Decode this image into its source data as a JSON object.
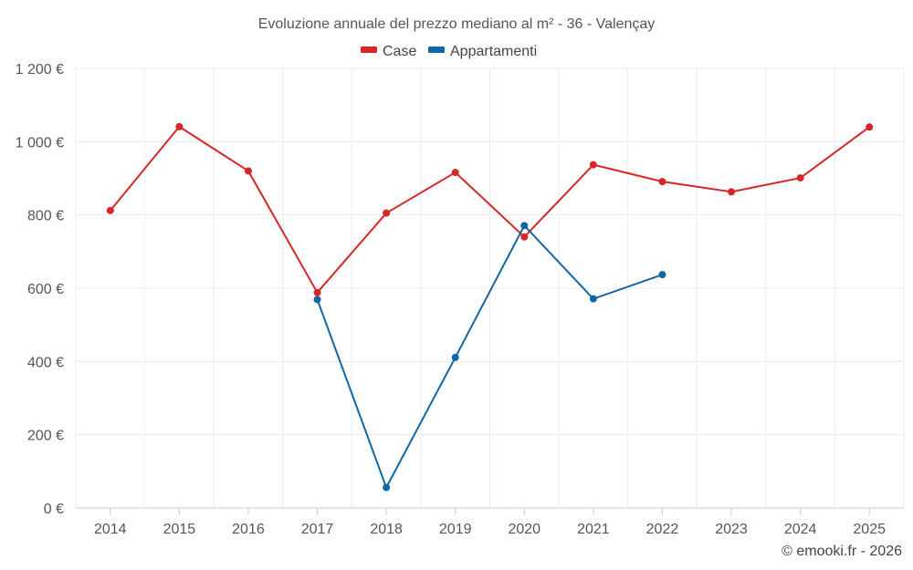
{
  "chart_data": {
    "type": "line",
    "title": "Evoluzione annuale del prezzo mediano al m² - 36 - Valençay",
    "categories": [
      "2014",
      "2015",
      "2016",
      "2017",
      "2018",
      "2019",
      "2020",
      "2021",
      "2022",
      "2023",
      "2024",
      "2025"
    ],
    "ylim": [
      0,
      1200
    ],
    "yticks": [
      0,
      200,
      400,
      600,
      800,
      1000,
      1200
    ],
    "ytick_labels": [
      "0 €",
      "200 €",
      "400 €",
      "600 €",
      "800 €",
      "1 000 €",
      "1 200 €"
    ],
    "grid": true,
    "legend_position": "top-center",
    "series": [
      {
        "name": "Case",
        "color": "#d62728",
        "values": [
          812,
          1041,
          920,
          588,
          805,
          916,
          740,
          937,
          891,
          863,
          901,
          1040
        ]
      },
      {
        "name": "Appartamenti",
        "color": "#1167a3",
        "values": [
          null,
          null,
          null,
          569,
          56,
          411,
          771,
          571,
          637,
          null,
          null,
          null
        ]
      }
    ]
  },
  "credit": "© emooki.fr - 2026"
}
